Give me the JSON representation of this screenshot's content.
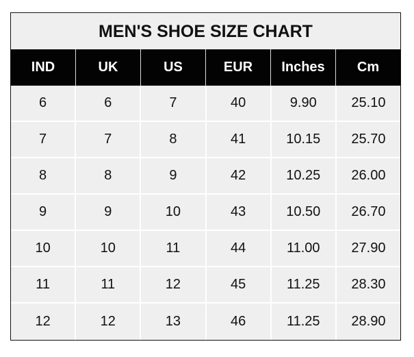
{
  "title": "MEN'S SHOE SIZE CHART",
  "headers": [
    "IND",
    "UK",
    "US",
    "EUR",
    "Inches",
    "Cm"
  ],
  "rows": [
    [
      "6",
      "6",
      "7",
      "40",
      "9.90",
      "25.10"
    ],
    [
      "7",
      "7",
      "8",
      "41",
      "10.15",
      "25.70"
    ],
    [
      "8",
      "8",
      "9",
      "42",
      "10.25",
      "26.00"
    ],
    [
      "9",
      "9",
      "10",
      "43",
      "10.50",
      "26.70"
    ],
    [
      "10",
      "10",
      "11",
      "44",
      "11.00",
      "27.90"
    ],
    [
      "11",
      "11",
      "12",
      "45",
      "11.25",
      "28.30"
    ],
    [
      "12",
      "12",
      "13",
      "46",
      "11.25",
      "28.90"
    ]
  ],
  "colors": {
    "header_bg": "#030303",
    "cell_bg": "#efefef",
    "header_text": "#ffffff"
  }
}
